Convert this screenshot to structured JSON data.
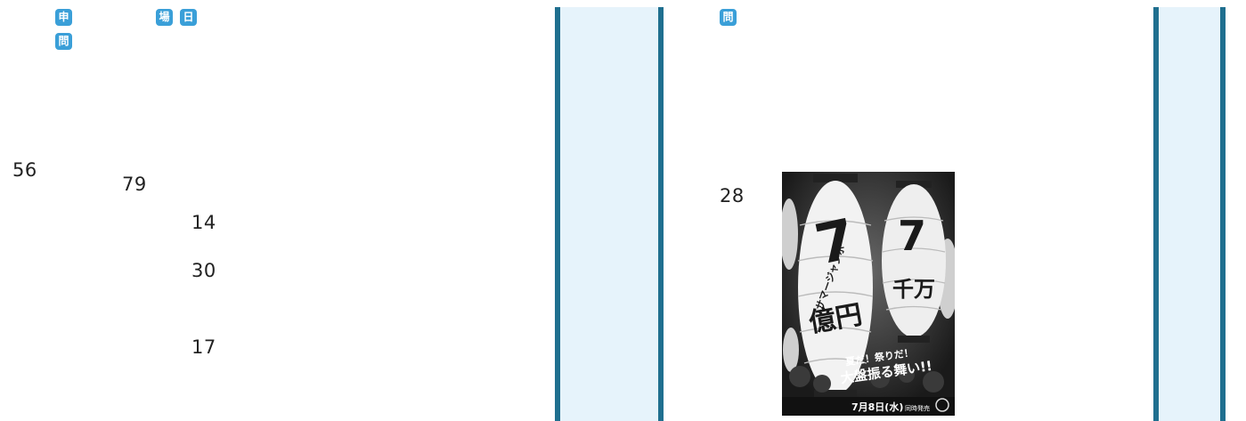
{
  "badges": {
    "moushikomi": "申",
    "toiawase_left": "問",
    "basho": "場",
    "nichiji": "日",
    "toiawase_right": "問"
  },
  "numbers": {
    "n56": "56",
    "n79": "79",
    "n14": "14",
    "n30": "30",
    "n17": "17",
    "n28": "28"
  },
  "poster": {
    "lantern_left_line1": "サマージャンボ",
    "lantern_left_big": "7",
    "lantern_left_amount": "億円",
    "lantern_right_big": "7",
    "lantern_right_amount": "千万",
    "slogan_line1": "夏だ！祭りだ！",
    "slogan_line2": "大盤振る舞い!!",
    "release_date": "7月8日(水)",
    "release_label": "同時発売"
  }
}
